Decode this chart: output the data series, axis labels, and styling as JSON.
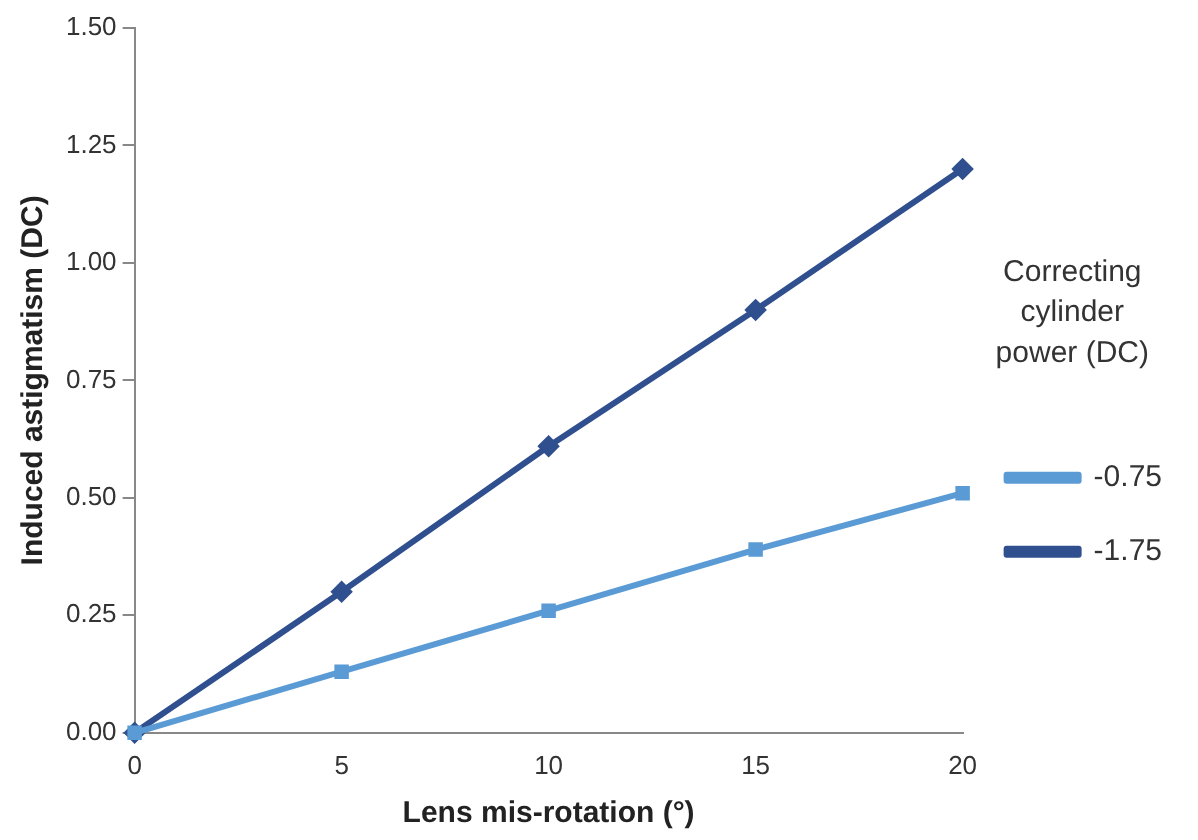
{
  "chart_data": {
    "type": "line",
    "xlabel": "Lens mis-rotation (°)",
    "ylabel": "Induced astigmatism (DC)",
    "legend_title": "Correcting cylinder power (DC)",
    "legend": "right",
    "x": [
      0,
      5,
      10,
      15,
      20
    ],
    "series": [
      {
        "name": "-0.75",
        "color": "#5b9bd5",
        "marker": "square",
        "values": [
          0,
          0.13,
          0.26,
          0.39,
          0.51
        ]
      },
      {
        "name": "-1.75",
        "color": "#2f4f8f",
        "marker": "diamond",
        "values": [
          0,
          0.3,
          0.61,
          0.9,
          1.2
        ]
      }
    ],
    "xlim": [
      0,
      20
    ],
    "xticks": [
      0,
      5,
      10,
      15,
      20
    ],
    "ylim": [
      0,
      1.5
    ],
    "yticks": [
      {
        "value": 0,
        "label": "0.00"
      },
      {
        "value": 0.25,
        "label": "0.25"
      },
      {
        "value": 0.5,
        "label": "0.50"
      },
      {
        "value": 0.75,
        "label": "0.75"
      },
      {
        "value": 1,
        "label": "1.00"
      },
      {
        "value": 1.25,
        "label": "1.25"
      },
      {
        "value": 1.5,
        "label": "1.50"
      }
    ]
  }
}
